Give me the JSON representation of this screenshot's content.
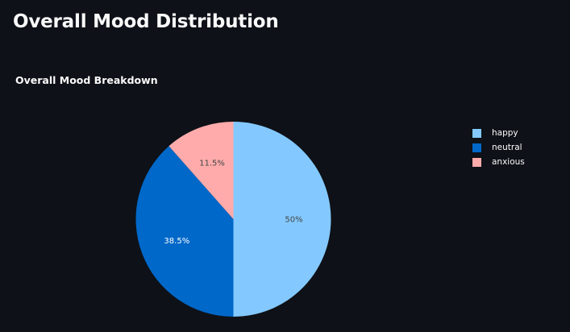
{
  "page": {
    "title": "Overall Mood Distribution"
  },
  "chart_data": {
    "type": "pie",
    "title": "Overall Mood Breakdown",
    "labels": [
      "happy",
      "neutral",
      "anxious"
    ],
    "values": [
      50,
      38.5,
      11.5
    ],
    "value_labels": [
      "50%",
      "38.5%",
      "11.5%"
    ],
    "colors": [
      "#83c9ff",
      "#0068c9",
      "#ffabab"
    ],
    "label_colors": [
      "#444444",
      "#ffffff",
      "#444444"
    ],
    "legend_position": "right",
    "direction": "clockwise",
    "start": "top"
  }
}
